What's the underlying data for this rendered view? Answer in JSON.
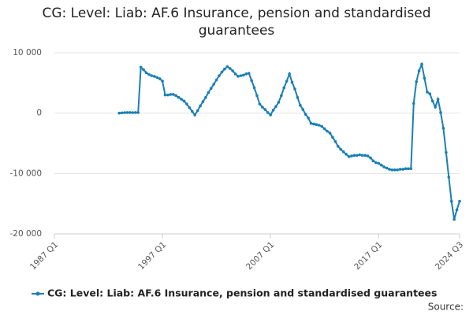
{
  "chart_data": {
    "type": "line",
    "title": "CG: Level: Liab: AF.6 Insurance, pension and standardised guarantees",
    "source": "Source:",
    "x": [
      1993,
      1993.25,
      1993.5,
      1993.75,
      1994,
      1994.25,
      1994.5,
      1994.75,
      1995,
      1995.25,
      1995.5,
      1995.75,
      1996,
      1996.25,
      1996.5,
      1996.75,
      1997,
      1997.25,
      1997.5,
      1997.75,
      1998,
      1998.25,
      1998.5,
      1998.75,
      1999,
      1999.25,
      1999.5,
      1999.75,
      2000,
      2000.25,
      2000.5,
      2000.75,
      2001,
      2001.25,
      2001.5,
      2001.75,
      2002,
      2002.25,
      2002.5,
      2002.75,
      2003,
      2003.25,
      2003.5,
      2003.75,
      2004,
      2004.25,
      2004.5,
      2004.75,
      2005,
      2005.25,
      2005.5,
      2005.75,
      2006,
      2006.25,
      2006.5,
      2006.75,
      2007,
      2007.25,
      2007.5,
      2007.75,
      2008,
      2008.25,
      2008.5,
      2008.75,
      2009,
      2009.25,
      2009.5,
      2009.75,
      2010,
      2010.25,
      2010.5,
      2010.75,
      2011,
      2011.25,
      2011.5,
      2011.75,
      2012,
      2012.25,
      2012.5,
      2012.75,
      2013,
      2013.25,
      2013.5,
      2013.75,
      2014,
      2014.25,
      2014.5,
      2014.75,
      2015,
      2015.25,
      2015.5,
      2015.75,
      2016,
      2016.25,
      2016.5,
      2016.75,
      2017,
      2017.25,
      2017.5,
      2017.75,
      2018,
      2018.25,
      2018.5,
      2018.75,
      2019,
      2019.25,
      2019.5,
      2019.75,
      2020,
      2020.25,
      2020.5,
      2020.75,
      2021,
      2021.25,
      2021.5,
      2021.75,
      2022,
      2022.25,
      2022.5,
      2022.75,
      2023,
      2023.25,
      2023.5,
      2023.75,
      2024,
      2024.25,
      2024.5
    ],
    "series": [
      {
        "name": "CG: Level: Liab: AF.6 Insurance, pension and standardised guarantees",
        "color": "#1a7fb5",
        "values": [
          0,
          50,
          80,
          100,
          100,
          80,
          100,
          100,
          7600,
          7200,
          6700,
          6400,
          6200,
          6100,
          5900,
          5700,
          5300,
          3000,
          3000,
          3100,
          3100,
          2900,
          2600,
          2300,
          2000,
          1500,
          900,
          300,
          -300,
          400,
          1200,
          1900,
          2600,
          3400,
          4100,
          4800,
          5500,
          6200,
          6800,
          7300,
          7700,
          7400,
          7000,
          6500,
          6100,
          6200,
          6300,
          6500,
          6600,
          5400,
          4200,
          2900,
          1500,
          1000,
          600,
          100,
          -300,
          500,
          1100,
          1800,
          2900,
          4200,
          5300,
          6500,
          5100,
          4000,
          2600,
          1300,
          600,
          -200,
          -800,
          -1700,
          -1800,
          -1900,
          -2000,
          -2200,
          -2600,
          -3000,
          -3300,
          -4000,
          -4700,
          -5500,
          -6000,
          -6400,
          -6800,
          -7200,
          -7100,
          -7000,
          -7000,
          -6900,
          -7000,
          -7000,
          -7100,
          -7400,
          -7900,
          -8200,
          -8300,
          -8600,
          -8900,
          -9100,
          -9300,
          -9400,
          -9400,
          -9400,
          -9300,
          -9300,
          -9200,
          -9200,
          -9200,
          1600,
          5200,
          7000,
          8100,
          5800,
          3500,
          3200,
          2000,
          1000,
          2300,
          100,
          -2500,
          -6500,
          -10600,
          -14600,
          -17600,
          -16000,
          -14600
        ]
      }
    ],
    "xlim": [
      1987,
      2024.5
    ],
    "xticks": [
      {
        "value": 1987,
        "label": "1987 Q1"
      },
      {
        "value": 1997,
        "label": "1997 Q1"
      },
      {
        "value": 2007,
        "label": "2007 Q1"
      },
      {
        "value": 2017,
        "label": "2017 Q1"
      },
      {
        "value": 2024.5,
        "label": "2024 Q3"
      }
    ],
    "ylim": [
      -20000,
      10000
    ],
    "yticks": [
      {
        "value": 10000,
        "label": "10 000"
      },
      0,
      {
        "value": -10000,
        "label": "-10 000"
      },
      {
        "value": -20000,
        "label": "-20 000"
      }
    ],
    "grid": true
  }
}
